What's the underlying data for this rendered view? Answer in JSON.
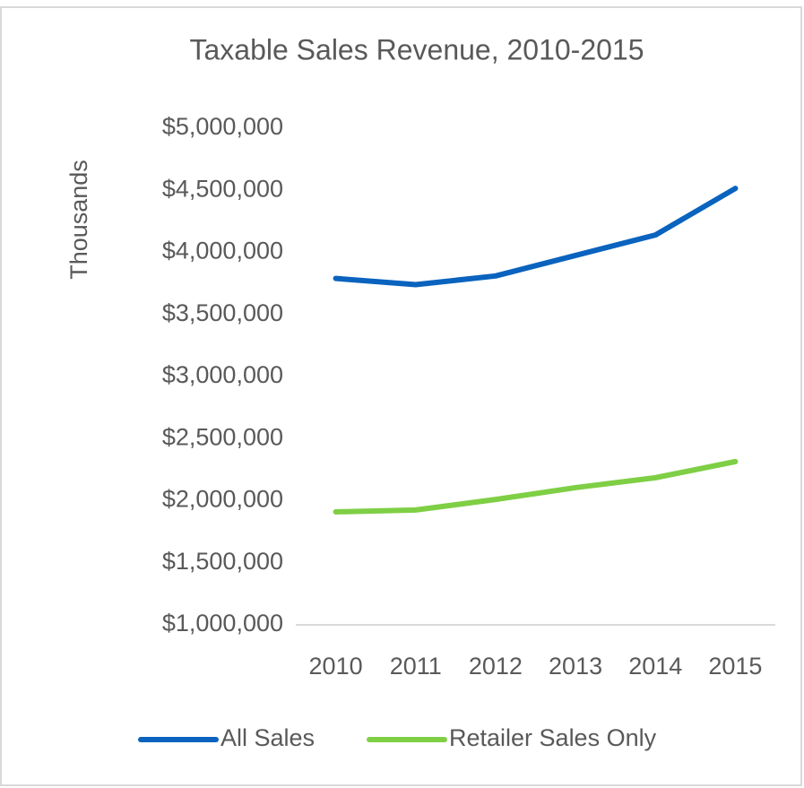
{
  "chart_data": {
    "type": "line",
    "title": "Taxable Sales Revenue, 2010-2015",
    "y_label": "Thousands",
    "categories": [
      "2010",
      "2011",
      "2012",
      "2013",
      "2014",
      "2015"
    ],
    "series": [
      {
        "name": "All Sales",
        "color": "#0a63be",
        "values": [
          3790000,
          3740000,
          3810000,
          3975000,
          4140000,
          4515000
        ]
      },
      {
        "name": "Retailer Sales Only",
        "color": "#7fcf45",
        "values": [
          1910000,
          1925000,
          2010000,
          2105000,
          2185000,
          2315000
        ]
      }
    ],
    "ylim": [
      1000000,
      5000000
    ],
    "yticks": [
      {
        "value": 1000000,
        "label": "$1,000,000"
      },
      {
        "value": 1500000,
        "label": "$1,500,000"
      },
      {
        "value": 2000000,
        "label": "$2,000,000"
      },
      {
        "value": 2500000,
        "label": "$2,500,000"
      },
      {
        "value": 3000000,
        "label": "$3,000,000"
      },
      {
        "value": 3500000,
        "label": "$3,500,000"
      },
      {
        "value": 4000000,
        "label": "$4,000,000"
      },
      {
        "value": 4500000,
        "label": "$4,500,000"
      },
      {
        "value": 5000000,
        "label": "$5,000,000"
      }
    ],
    "grid": false,
    "legend": "bottom"
  }
}
